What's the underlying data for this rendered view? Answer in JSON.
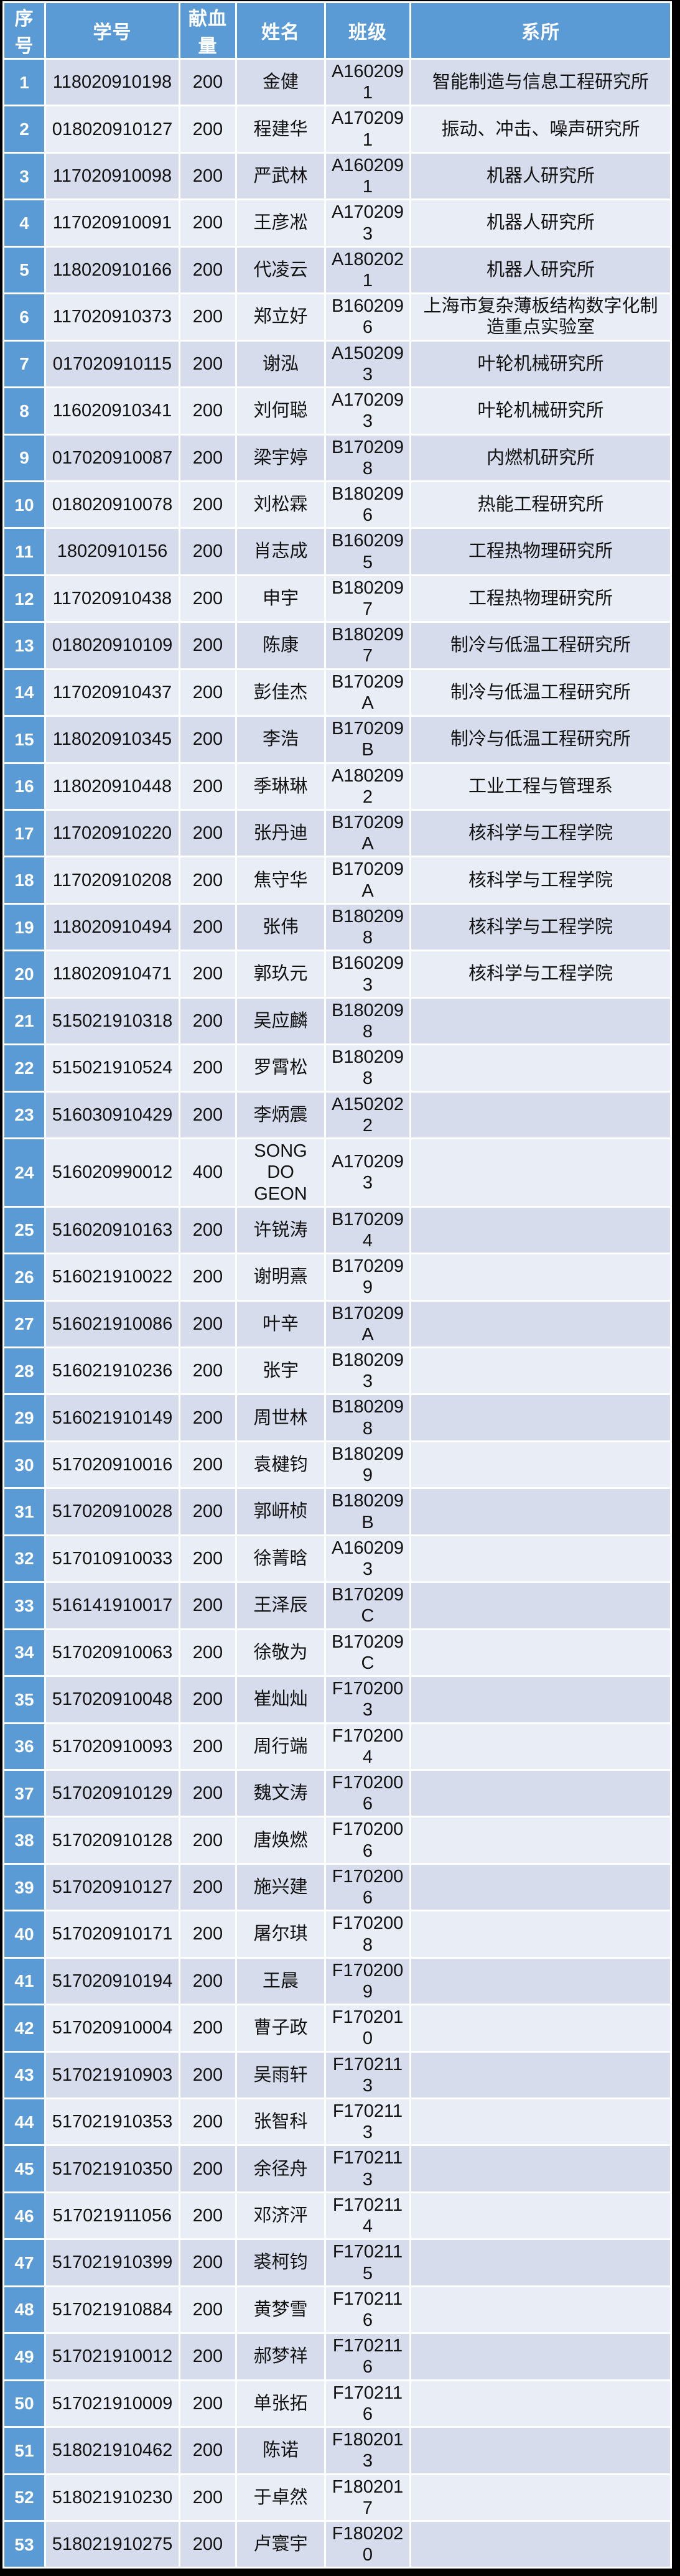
{
  "table": {
    "columns": [
      "序号",
      "学号",
      "献血量",
      "姓名",
      "班级",
      "系所"
    ],
    "rows": [
      {
        "no": "1",
        "student_id": "118020910198",
        "amount": "200",
        "name": "金健",
        "class": "A1602091",
        "dept": "智能制造与信息工程研究所"
      },
      {
        "no": "2",
        "student_id": "018020910127",
        "amount": "200",
        "name": "程建华",
        "class": "A1702091",
        "dept": "振动、冲击、噪声研究所"
      },
      {
        "no": "3",
        "student_id": "117020910098",
        "amount": "200",
        "name": "严武林",
        "class": "A1602091",
        "dept": "机器人研究所"
      },
      {
        "no": "4",
        "student_id": "117020910091",
        "amount": "200",
        "name": "王彦凇",
        "class": "A1702093",
        "dept": "机器人研究所"
      },
      {
        "no": "5",
        "student_id": "118020910166",
        "amount": "200",
        "name": "代凌云",
        "class": "A1802021",
        "dept": "机器人研究所"
      },
      {
        "no": "6",
        "student_id": "117020910373",
        "amount": "200",
        "name": "郑立好",
        "class": "B1602096",
        "dept": "上海市复杂薄板结构数字化制造重点实验室"
      },
      {
        "no": "7",
        "student_id": "017020910115",
        "amount": "200",
        "name": "谢泓",
        "class": "A1502093",
        "dept": "叶轮机械研究所"
      },
      {
        "no": "8",
        "student_id": "116020910341",
        "amount": "200",
        "name": "刘何聪",
        "class": "A1702093",
        "dept": "叶轮机械研究所"
      },
      {
        "no": "9",
        "student_id": "017020910087",
        "amount": "200",
        "name": "梁宇婷",
        "class": "B1702098",
        "dept": "内燃机研究所"
      },
      {
        "no": "10",
        "student_id": "018020910078",
        "amount": "200",
        "name": "刘松霖",
        "class": "B1802096",
        "dept": "热能工程研究所"
      },
      {
        "no": "11",
        "student_id": "18020910156",
        "amount": "200",
        "name": "肖志成",
        "class": "B1602095",
        "dept": "工程热物理研究所"
      },
      {
        "no": "12",
        "student_id": "117020910438",
        "amount": "200",
        "name": "申宇",
        "class": "B1802097",
        "dept": "工程热物理研究所"
      },
      {
        "no": "13",
        "student_id": "018020910109",
        "amount": "200",
        "name": "陈康",
        "class": "B1802097",
        "dept": "制冷与低温工程研究所"
      },
      {
        "no": "14",
        "student_id": "117020910437",
        "amount": "200",
        "name": "彭佳杰",
        "class": "B170209A",
        "dept": "制冷与低温工程研究所"
      },
      {
        "no": "15",
        "student_id": "118020910345",
        "amount": "200",
        "name": "李浩",
        "class": "B170209B",
        "dept": "制冷与低温工程研究所"
      },
      {
        "no": "16",
        "student_id": "118020910448",
        "amount": "200",
        "name": "季琳琳",
        "class": "A1802092",
        "dept": "工业工程与管理系"
      },
      {
        "no": "17",
        "student_id": "117020910220",
        "amount": "200",
        "name": "张丹迪",
        "class": "B170209A",
        "dept": "核科学与工程学院"
      },
      {
        "no": "18",
        "student_id": "117020910208",
        "amount": "200",
        "name": "焦守华",
        "class": "B170209A",
        "dept": "核科学与工程学院"
      },
      {
        "no": "19",
        "student_id": "118020910494",
        "amount": "200",
        "name": "张伟",
        "class": "B1802098",
        "dept": "核科学与工程学院"
      },
      {
        "no": "20",
        "student_id": "118020910471",
        "amount": "200",
        "name": "郭玖元",
        "class": "B1602093",
        "dept": "核科学与工程学院"
      },
      {
        "no": "21",
        "student_id": "515021910318",
        "amount": "200",
        "name": "吴应麟",
        "class": "B1802098",
        "dept": ""
      },
      {
        "no": "22",
        "student_id": "515021910524",
        "amount": "200",
        "name": "罗霄松",
        "class": "B1802098",
        "dept": ""
      },
      {
        "no": "23",
        "student_id": "516030910429",
        "amount": "200",
        "name": "李炳震",
        "class": "A1502022",
        "dept": ""
      },
      {
        "no": "24",
        "student_id": "516020990012",
        "amount": "400",
        "name": "SONG DO GEON",
        "class": "A1702093",
        "dept": ""
      },
      {
        "no": "25",
        "student_id": "516020910163",
        "amount": "200",
        "name": "许锐涛",
        "class": "B1702094",
        "dept": ""
      },
      {
        "no": "26",
        "student_id": "516021910022",
        "amount": "200",
        "name": "谢明熹",
        "class": "B1702099",
        "dept": ""
      },
      {
        "no": "27",
        "student_id": "516021910086",
        "amount": "200",
        "name": "叶辛",
        "class": "B170209A",
        "dept": ""
      },
      {
        "no": "28",
        "student_id": "516021910236",
        "amount": "200",
        "name": "张宇",
        "class": "B1802093",
        "dept": ""
      },
      {
        "no": "29",
        "student_id": "516021910149",
        "amount": "200",
        "name": "周世林",
        "class": "B1802098",
        "dept": ""
      },
      {
        "no": "30",
        "student_id": "517020910016",
        "amount": "200",
        "name": "袁楗钧",
        "class": "B1802099",
        "dept": ""
      },
      {
        "no": "31",
        "student_id": "517020910028",
        "amount": "200",
        "name": "郭岍桢",
        "class": "B180209B",
        "dept": ""
      },
      {
        "no": "32",
        "student_id": "517010910033",
        "amount": "200",
        "name": "徐菁晗",
        "class": "A1602093",
        "dept": ""
      },
      {
        "no": "33",
        "student_id": "516141910017",
        "amount": "200",
        "name": "王泽辰",
        "class": "B170209C",
        "dept": ""
      },
      {
        "no": "34",
        "student_id": "517020910063",
        "amount": "200",
        "name": "徐敬为",
        "class": "B170209C",
        "dept": ""
      },
      {
        "no": "35",
        "student_id": "517020910048",
        "amount": "200",
        "name": "崔灿灿",
        "class": "F1702003",
        "dept": ""
      },
      {
        "no": "36",
        "student_id": "517020910093",
        "amount": "200",
        "name": "周行端",
        "class": "F1702004",
        "dept": ""
      },
      {
        "no": "37",
        "student_id": "517020910129",
        "amount": "200",
        "name": "魏文涛",
        "class": "F1702006",
        "dept": ""
      },
      {
        "no": "38",
        "student_id": "517020910128",
        "amount": "200",
        "name": "唐焕燃",
        "class": "F1702006",
        "dept": ""
      },
      {
        "no": "39",
        "student_id": "517020910127",
        "amount": "200",
        "name": "施兴建",
        "class": "F1702006",
        "dept": ""
      },
      {
        "no": "40",
        "student_id": "517020910171",
        "amount": "200",
        "name": "屠尔琪",
        "class": "F1702008",
        "dept": ""
      },
      {
        "no": "41",
        "student_id": "517020910194",
        "amount": "200",
        "name": "王晨",
        "class": "F1702009",
        "dept": ""
      },
      {
        "no": "42",
        "student_id": "517020910004",
        "amount": "200",
        "name": "曹子政",
        "class": "F1702010",
        "dept": ""
      },
      {
        "no": "43",
        "student_id": "517021910903",
        "amount": "200",
        "name": "吴雨轩",
        "class": "F1702113",
        "dept": ""
      },
      {
        "no": "44",
        "student_id": "517021910353",
        "amount": "200",
        "name": "张智科",
        "class": "F1702113",
        "dept": ""
      },
      {
        "no": "45",
        "student_id": "517021910350",
        "amount": "200",
        "name": "余径舟",
        "class": "F1702113",
        "dept": ""
      },
      {
        "no": "46",
        "student_id": "517021911056",
        "amount": "200",
        "name": "邓济泙",
        "class": "F1702114",
        "dept": ""
      },
      {
        "no": "47",
        "student_id": "517021910399",
        "amount": "200",
        "name": "裘柯钧",
        "class": "F1702115",
        "dept": ""
      },
      {
        "no": "48",
        "student_id": "517021910884",
        "amount": "200",
        "name": "黄梦雪",
        "class": "F1702116",
        "dept": ""
      },
      {
        "no": "49",
        "student_id": "517021910012",
        "amount": "200",
        "name": "郝梦祥",
        "class": "F1702116",
        "dept": ""
      },
      {
        "no": "50",
        "student_id": "517021910009",
        "amount": "200",
        "name": "单张拓",
        "class": "F1702116",
        "dept": ""
      },
      {
        "no": "51",
        "student_id": "518021910462",
        "amount": "200",
        "name": "陈诺",
        "class": "F1802013",
        "dept": ""
      },
      {
        "no": "52",
        "student_id": "518021910230",
        "amount": "200",
        "name": "于卓然",
        "class": "F1802017",
        "dept": ""
      },
      {
        "no": "53",
        "student_id": "518021910275",
        "amount": "200",
        "name": "卢寰宇",
        "class": "F1802020",
        "dept": ""
      }
    ]
  },
  "colors": {
    "header_bg": "#5b9bd5",
    "index_bg": "#5b9bd5",
    "header_text": "#ffffff",
    "row_odd": "#d6dcec",
    "row_even": "#e9edf6",
    "grid": "#ffffff",
    "frame": "#000000",
    "cell_text": "#111111"
  }
}
